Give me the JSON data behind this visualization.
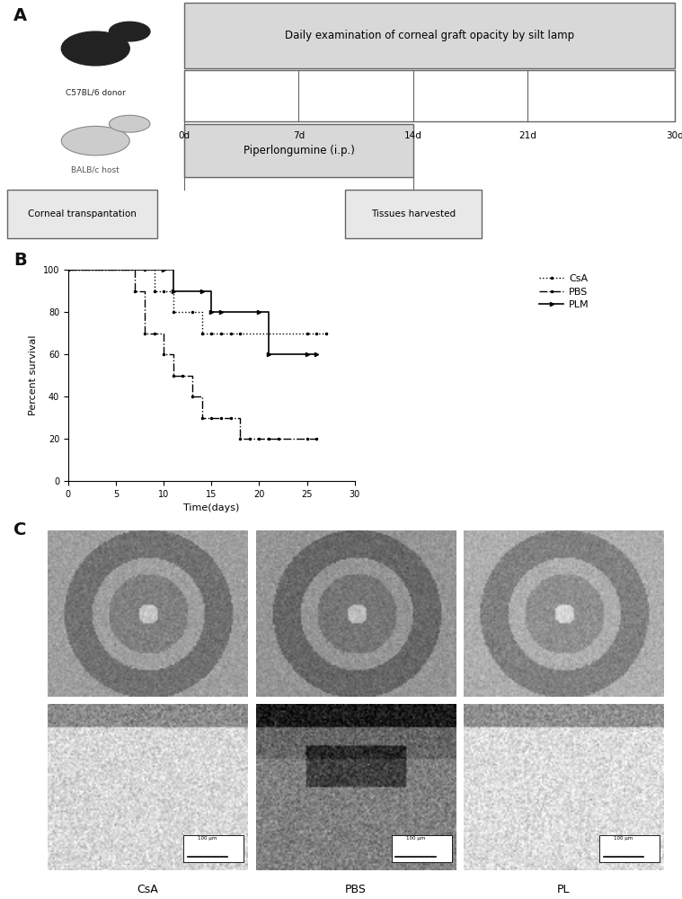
{
  "panel_A": {
    "top_box_text": "Daily examination of corneal graft opacity by silt lamp",
    "timeline_days": [
      "0d",
      "7d",
      "14d",
      "21d",
      "30d"
    ],
    "timeline_x_norm": [
      0,
      7,
      14,
      21,
      30
    ],
    "pip_box_text": "Piperlongumine (i.p.)",
    "corneal_box_text": "Corneal transpantation",
    "tissue_box_text": "Tissues harvested",
    "donor_label": "C57BL/6 donor",
    "host_label": "BALB/c host"
  },
  "panel_B": {
    "xlabel": "Time(days)",
    "ylabel": "Percent survival",
    "xlim": [
      0,
      30
    ],
    "ylim": [
      0,
      100
    ],
    "xticks": [
      0,
      5,
      10,
      15,
      20,
      25,
      30
    ],
    "yticks": [
      0,
      20,
      40,
      60,
      80,
      100
    ],
    "CsA_x": [
      0,
      8,
      9,
      10,
      11,
      13,
      14,
      15,
      16,
      17,
      18,
      25,
      26,
      27
    ],
    "CsA_y": [
      100,
      100,
      90,
      90,
      80,
      80,
      70,
      70,
      70,
      70,
      70,
      70,
      70,
      70
    ],
    "PBS_x": [
      0,
      7,
      8,
      9,
      10,
      11,
      12,
      13,
      14,
      15,
      16,
      17,
      18,
      19,
      20,
      21,
      22,
      25,
      26
    ],
    "PBS_y": [
      100,
      90,
      70,
      70,
      60,
      50,
      50,
      40,
      30,
      30,
      30,
      30,
      20,
      20,
      20,
      20,
      20,
      20,
      20
    ],
    "PLM_x": [
      0,
      10,
      11,
      14,
      15,
      16,
      20,
      21,
      25,
      26
    ],
    "PLM_y": [
      100,
      100,
      90,
      90,
      80,
      80,
      80,
      60,
      60,
      60
    ]
  },
  "panel_C": {
    "col_labels": [
      "CsA",
      "PBS",
      "PL"
    ],
    "scale_bar_text": "100 μm"
  },
  "figure": {
    "bg_color": "#ffffff",
    "text_color": "#111111",
    "panel_label_fontsize": 14,
    "panel_label_weight": "bold"
  }
}
